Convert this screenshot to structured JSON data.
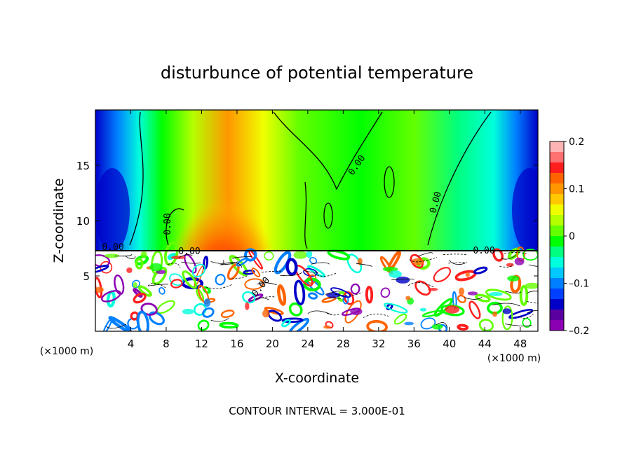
{
  "chart_data": {
    "type": "heatmap",
    "title": "disturbunce of potential temperature",
    "xlabel": "X-coordinate",
    "ylabel": "Z-coordinate",
    "x_unit": "(×1000 m)",
    "y_unit": "(×1000 m)",
    "xlim": [
      0,
      50
    ],
    "ylim": [
      0,
      20
    ],
    "x_ticks": [
      4,
      8,
      12,
      16,
      20,
      24,
      28,
      32,
      36,
      40,
      44,
      48
    ],
    "y_ticks": [
      5,
      10,
      15
    ],
    "colorbar": {
      "range": [
        -0.2,
        0.2
      ],
      "tick_labels": [
        "0.2",
        "0.1",
        "0",
        "–0.1",
        "–0.2"
      ],
      "tick_values": [
        0.2,
        0.1,
        0,
        -0.1,
        -0.2
      ]
    },
    "contour_label": "0.00",
    "note": "CONTOUR INTERVAL = 3.000E-01"
  },
  "colors": {
    "colorbar_top_to_bottom": [
      "#ffb4b4",
      "#ff7070",
      "#ff1e1e",
      "#ff6400",
      "#ff9600",
      "#ffc800",
      "#f0ff00",
      "#b4ff00",
      "#64ff00",
      "#00ff00",
      "#00ff80",
      "#00ffdc",
      "#00c8ff",
      "#0080ff",
      "#0040ff",
      "#0000c8",
      "#5a00a0",
      "#8c00b4"
    ]
  }
}
